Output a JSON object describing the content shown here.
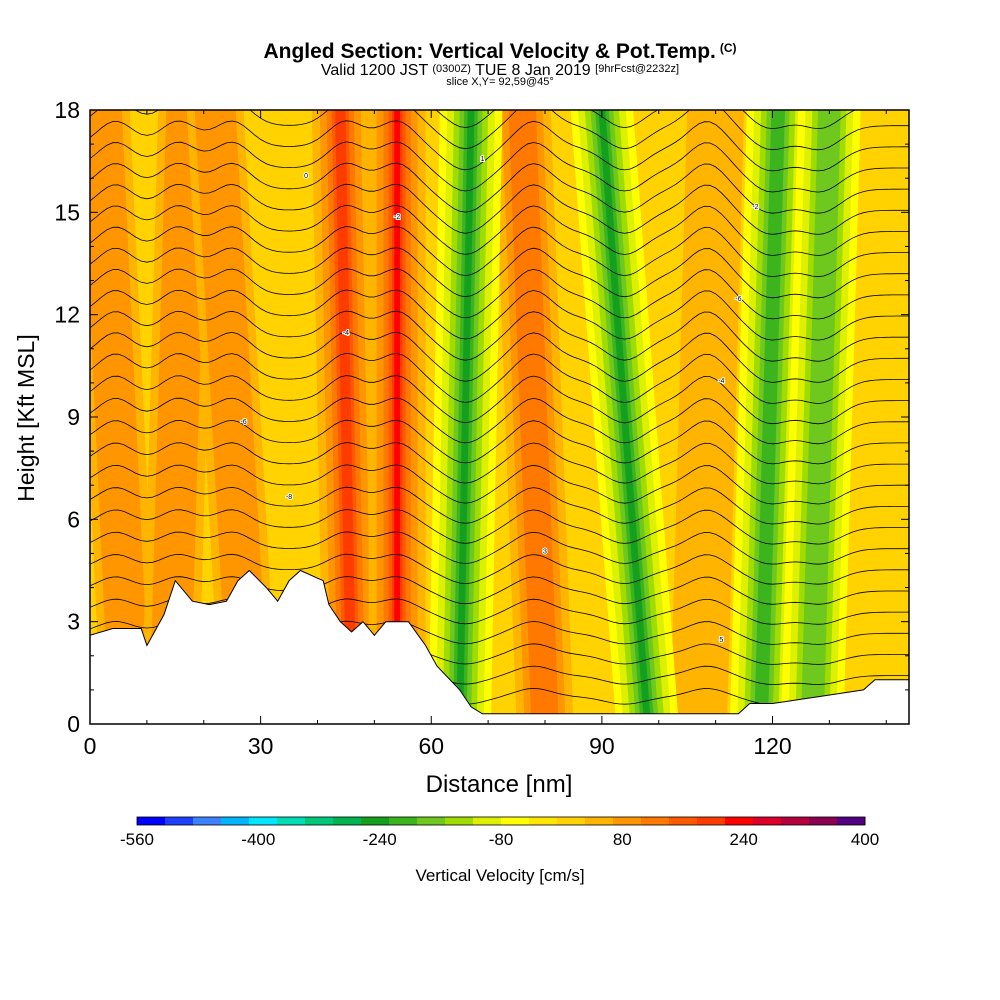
{
  "header": {
    "title": "Angled Section: Vertical Velocity & Pot.Temp.",
    "title_unit": "(C)",
    "valid_prefix": "Valid 1200 JST",
    "valid_utc": "(0300Z)",
    "valid_date": "TUE 8 Jan 2019",
    "forecast_tag": "[9hrFcst@2232z]",
    "slice": "slice X,Y= 92,59@45°"
  },
  "chart_data": {
    "type": "heatmap",
    "title": "Angled Section: Vertical Velocity & Pot.Temp.",
    "xlabel": "Distance [nm]",
    "ylabel": "Height [Kft MSL]",
    "xlim": [
      0,
      144
    ],
    "ylim": [
      0,
      18
    ],
    "x_ticks": [
      0,
      30,
      60,
      90,
      120
    ],
    "y_ticks": [
      0,
      3,
      6,
      9,
      12,
      15,
      18
    ],
    "field": "vertical velocity (cm/s), filled contours; potential temperature (C) as black contour lines",
    "updraft_bands": [
      {
        "x_base": 7,
        "x_top": 2,
        "max_cms": 120
      },
      {
        "x_base": 14,
        "x_top": 17,
        "max_cms": 120
      },
      {
        "x_base": 28,
        "x_top": 22,
        "max_cms": 120
      },
      {
        "x_base": 46,
        "x_top": 44,
        "max_cms": 240
      },
      {
        "x_base": 54,
        "x_top": 54,
        "max_cms": 400
      },
      {
        "x_base": 80,
        "x_top": 76,
        "max_cms": 160
      },
      {
        "x_base": 107,
        "x_top": 110,
        "max_cms": 80
      }
    ],
    "downdraft_bands": [
      {
        "x_base": 65,
        "x_top": 67,
        "min_cms": -240
      },
      {
        "x_base": 98,
        "x_top": 90,
        "min_cms": -240
      },
      {
        "x_base": 118,
        "x_top": 121,
        "min_cms": -200
      },
      {
        "x_base": 127,
        "x_top": 130,
        "min_cms": -160
      }
    ],
    "terrain_kft": [
      [
        0,
        2.6
      ],
      [
        4,
        2.8
      ],
      [
        9,
        2.8
      ],
      [
        10,
        2.3
      ],
      [
        11,
        2.6
      ],
      [
        13,
        3.2
      ],
      [
        15,
        4.2
      ],
      [
        18,
        3.6
      ],
      [
        21,
        3.5
      ],
      [
        24,
        3.6
      ],
      [
        26,
        4.2
      ],
      [
        28,
        4.5
      ],
      [
        31,
        4.0
      ],
      [
        33,
        3.6
      ],
      [
        35,
        4.2
      ],
      [
        37,
        4.5
      ],
      [
        41,
        4.2
      ],
      [
        42,
        3.5
      ],
      [
        44,
        3.0
      ],
      [
        46,
        2.7
      ],
      [
        48,
        3.0
      ],
      [
        50,
        2.6
      ],
      [
        52,
        3.0
      ],
      [
        56,
        3.0
      ],
      [
        59,
        2.3
      ],
      [
        61,
        1.7
      ],
      [
        65,
        1.0
      ],
      [
        67,
        0.5
      ],
      [
        69,
        0.3
      ],
      [
        80,
        0.3
      ],
      [
        100,
        0.3
      ],
      [
        114,
        0.3
      ],
      [
        116,
        0.6
      ],
      [
        120,
        0.6
      ],
      [
        128,
        0.8
      ],
      [
        136,
        1.0
      ],
      [
        138,
        1.3
      ],
      [
        144,
        1.3
      ]
    ],
    "theta_labels": [
      {
        "text": "-8",
        "x": 35,
        "y": 6.6
      },
      {
        "text": "-6",
        "x": 27,
        "y": 8.8
      },
      {
        "text": "-4",
        "x": 45,
        "y": 11.4
      },
      {
        "text": "-2",
        "x": 54,
        "y": 14.8
      },
      {
        "text": "0",
        "x": 38,
        "y": 16.0
      },
      {
        "text": "-4",
        "x": 111,
        "y": 10.0
      },
      {
        "text": "-6",
        "x": 114,
        "y": 12.4
      },
      {
        "text": "-2",
        "x": 117,
        "y": 15.1
      },
      {
        "text": "1",
        "x": 69,
        "y": 16.5
      },
      {
        "text": "3",
        "x": 80,
        "y": 5.0
      },
      {
        "text": "5",
        "x": 111,
        "y": 2.4
      }
    ]
  },
  "colorbar": {
    "title": "Vertical Velocity [cm/s]",
    "min": -560,
    "max": 400,
    "step": 40,
    "tick_labels": [
      "-560",
      "-400",
      "-240",
      "-80",
      "80",
      "240",
      "400"
    ],
    "colors": [
      "#0000ff",
      "#1e40ff",
      "#3c82ff",
      "#00b4ff",
      "#00e6ff",
      "#00dcb4",
      "#00c878",
      "#00b450",
      "#14a01e",
      "#3cb41e",
      "#6ec81e",
      "#a0dc00",
      "#dcf000",
      "#ffff00",
      "#ffe600",
      "#ffd200",
      "#ffb400",
      "#ff9600",
      "#ff7800",
      "#ff5a00",
      "#ff3c00",
      "#ff0000",
      "#dc0028",
      "#b4003c",
      "#8c0050",
      "#500080"
    ]
  }
}
